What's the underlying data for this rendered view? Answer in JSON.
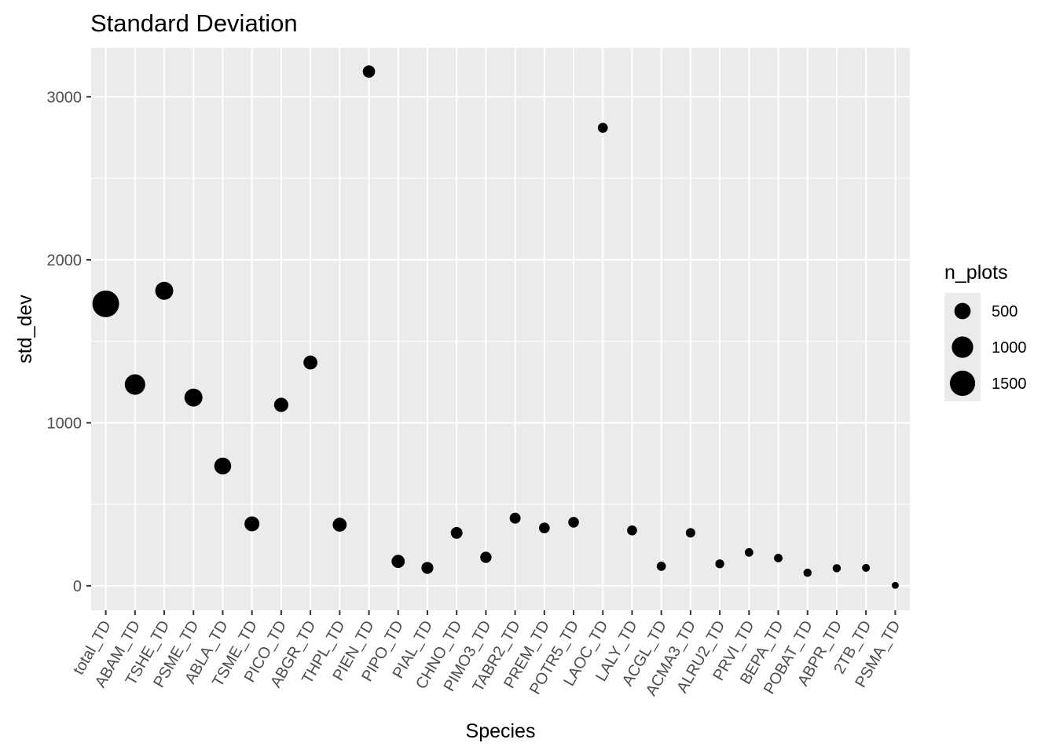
{
  "chart_data": {
    "type": "scatter",
    "title": "Standard Deviation",
    "xlabel": "Species",
    "ylabel": "std_dev",
    "categories": [
      "total_TD",
      "ABAM_TD",
      "TSHE_TD",
      "PSME_TD",
      "ABLA_TD",
      "TSME_TD",
      "PICO_TD",
      "ABGR_TD",
      "THPL_TD",
      "PIEN_TD",
      "PIPO_TD",
      "PIAL_TD",
      "CHNO_TD",
      "PIMO3_TD",
      "TABR2_TD",
      "PREM_TD",
      "POTR5_TD",
      "LAOC_TD",
      "LALY_TD",
      "ACGL_TD",
      "ACMA3_TD",
      "ALRU2_TD",
      "PRVI_TD",
      "BEPA_TD",
      "POBAT_TD",
      "ABPR_TD",
      "2TB_TD",
      "PSMA_TD"
    ],
    "values": [
      1730,
      1235,
      1810,
      1155,
      735,
      380,
      1110,
      1370,
      375,
      3155,
      150,
      110,
      325,
      175,
      415,
      355,
      390,
      2810,
      340,
      120,
      325,
      135,
      205,
      170,
      80,
      108,
      110,
      3
    ],
    "n_plots": [
      1700,
      900,
      650,
      650,
      550,
      400,
      350,
      330,
      330,
      230,
      280,
      210,
      200,
      180,
      160,
      150,
      150,
      120,
      120,
      90,
      100,
      80,
      70,
      70,
      60,
      60,
      50,
      30
    ],
    "ylim": [
      -150,
      3300
    ],
    "yticks": [
      0,
      1000,
      2000,
      3000
    ],
    "grid": true,
    "size_legend": {
      "title": "n_plots",
      "entries": [
        {
          "label": "500",
          "value": 500
        },
        {
          "label": "1000",
          "value": 1000
        },
        {
          "label": "1500",
          "value": 1500
        }
      ],
      "placement": "right"
    },
    "colors": {
      "panel": "#ebebeb",
      "grid": "#ffffff",
      "point": "#000000"
    }
  }
}
